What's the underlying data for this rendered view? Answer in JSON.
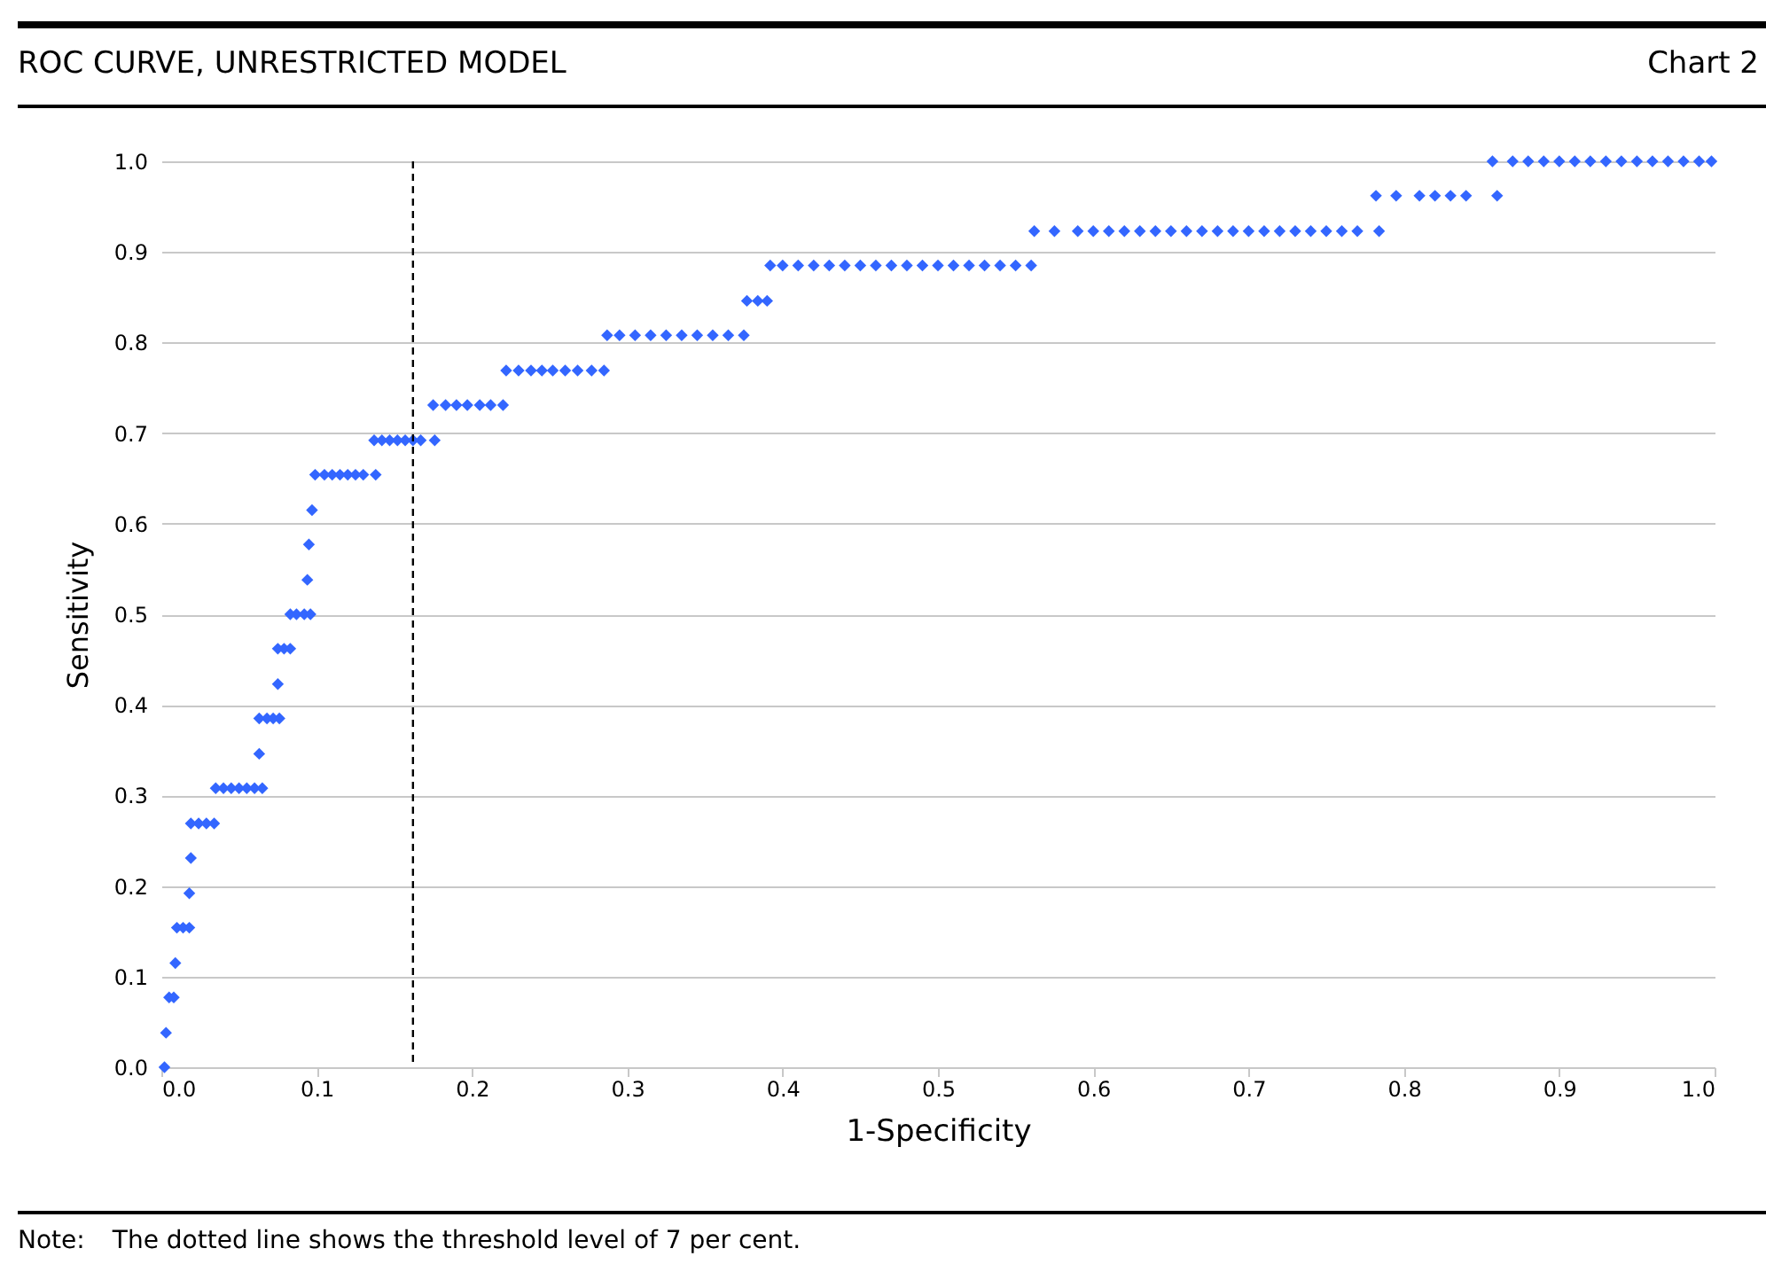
{
  "chart_data": {
    "type": "scatter",
    "title": "ROC CURVE, UNRESTRICTED MODEL",
    "subtitle": "Chart 2",
    "xlabel": "1-Specificity",
    "ylabel": "Sensitivity",
    "annotations": [
      "Note:\tThe dotted line shows the threshold level of 7 per cent."
    ],
    "xlim": [
      0,
      1
    ],
    "ylim": [
      0,
      1
    ],
    "xticks": [
      {
        "value": 0,
        "label": "0.0"
      },
      0.1,
      0.2,
      0.3,
      0.4,
      0.5,
      0.6,
      0.7,
      0.8,
      0.9,
      {
        "value": 1,
        "label": "1.0"
      }
    ],
    "yticks": [
      {
        "value": 0,
        "label": "0.0"
      },
      0.1,
      0.2,
      0.3,
      0.4,
      0.5,
      0.6,
      0.7,
      0.8,
      0.9,
      {
        "value": 1,
        "label": "1.0"
      }
    ],
    "grid": "y",
    "marker": "diamond",
    "ref_lines": [
      {
        "axis": "x",
        "value": 0.162,
        "line_style": "dashed",
        "color": "#000000"
      }
    ],
    "series": [
      {
        "color": "#3366ff",
        "x": [
          0.002,
          0.003,
          0.005,
          0.008,
          0.009,
          0.01,
          0.014,
          0.018,
          0.018,
          0.019,
          0.019,
          0.024,
          0.029,
          0.034,
          0.035,
          0.04,
          0.045,
          0.05,
          0.055,
          0.06,
          0.065,
          0.063,
          0.063,
          0.068,
          0.072,
          0.076,
          0.075,
          0.075,
          0.079,
          0.083,
          0.083,
          0.087,
          0.092,
          0.096,
          0.094,
          0.095,
          0.097,
          0.099,
          0.105,
          0.11,
          0.115,
          0.12,
          0.125,
          0.13,
          0.138,
          0.137,
          0.142,
          0.147,
          0.152,
          0.157,
          0.162,
          0.167,
          0.176,
          0.175,
          0.183,
          0.19,
          0.197,
          0.205,
          0.212,
          0.22,
          0.222,
          0.23,
          0.238,
          0.245,
          0.252,
          0.26,
          0.268,
          0.277,
          0.285,
          0.287,
          0.295,
          0.305,
          0.315,
          0.325,
          0.335,
          0.345,
          0.355,
          0.365,
          0.375,
          0.377,
          0.384,
          0.39,
          0.392,
          0.4,
          0.41,
          0.42,
          0.43,
          0.44,
          0.45,
          0.46,
          0.47,
          0.48,
          0.49,
          0.5,
          0.51,
          0.52,
          0.53,
          0.54,
          0.55,
          0.56,
          0.562,
          0.575,
          0.59,
          0.6,
          0.61,
          0.62,
          0.63,
          0.64,
          0.65,
          0.66,
          0.67,
          0.68,
          0.69,
          0.7,
          0.71,
          0.72,
          0.73,
          0.74,
          0.75,
          0.76,
          0.77,
          0.784,
          0.782,
          0.795,
          0.81,
          0.82,
          0.83,
          0.84,
          0.86,
          0.857,
          0.87,
          0.88,
          0.89,
          0.9,
          0.91,
          0.92,
          0.93,
          0.94,
          0.95,
          0.96,
          0.97,
          0.98,
          0.99,
          0.998
        ],
        "values": [
          0,
          0.038,
          0.077,
          0.077,
          0.115,
          0.154,
          0.154,
          0.154,
          0.192,
          0.231,
          0.269,
          0.269,
          0.269,
          0.269,
          0.308,
          0.308,
          0.308,
          0.308,
          0.308,
          0.308,
          0.308,
          0.346,
          0.385,
          0.385,
          0.385,
          0.385,
          0.423,
          0.462,
          0.462,
          0.462,
          0.5,
          0.5,
          0.5,
          0.5,
          0.538,
          0.577,
          0.615,
          0.654,
          0.654,
          0.654,
          0.654,
          0.654,
          0.654,
          0.654,
          0.654,
          0.692,
          0.692,
          0.692,
          0.692,
          0.692,
          0.692,
          0.692,
          0.692,
          0.731,
          0.731,
          0.731,
          0.731,
          0.731,
          0.731,
          0.731,
          0.769,
          0.769,
          0.769,
          0.769,
          0.769,
          0.769,
          0.769,
          0.769,
          0.769,
          0.808,
          0.808,
          0.808,
          0.808,
          0.808,
          0.808,
          0.808,
          0.808,
          0.808,
          0.808,
          0.846,
          0.846,
          0.846,
          0.885,
          0.885,
          0.885,
          0.885,
          0.885,
          0.885,
          0.885,
          0.885,
          0.885,
          0.885,
          0.885,
          0.885,
          0.885,
          0.885,
          0.885,
          0.885,
          0.885,
          0.885,
          0.923,
          0.923,
          0.923,
          0.923,
          0.923,
          0.923,
          0.923,
          0.923,
          0.923,
          0.923,
          0.923,
          0.923,
          0.923,
          0.923,
          0.923,
          0.923,
          0.923,
          0.923,
          0.923,
          0.923,
          0.923,
          0.923,
          0.962,
          0.962,
          0.962,
          0.962,
          0.962,
          0.962,
          0.962,
          1,
          1,
          1,
          1,
          1,
          1,
          1,
          1,
          1,
          1,
          1,
          1,
          1,
          1,
          1
        ]
      }
    ]
  }
}
